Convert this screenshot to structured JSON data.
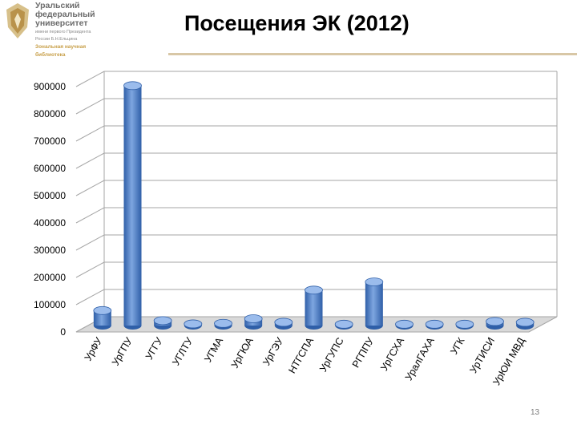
{
  "logo": {
    "name_lines": [
      "Уральский",
      "федеральный",
      "университет"
    ],
    "sub_lines": [
      "имени первого Президента",
      "России Б.Н.Ельцина"
    ],
    "lib_lines": [
      "Зональная научная",
      "библиотека"
    ]
  },
  "page": {
    "title": "Посещения ЭК (2012)",
    "number": "13"
  },
  "colors": {
    "bar_front": "#2f5fa8",
    "bar_light": "#7ea6e0",
    "bar_top": "#9bbcec",
    "grid": "#a6a6a6",
    "floor": "#d9d9d9",
    "title_rule": "#d8c7a6"
  },
  "chart_data": {
    "type": "bar",
    "title": "",
    "xlabel": "",
    "ylabel": "",
    "ylim": [
      0,
      900000
    ],
    "yticks": [
      "0",
      "100000",
      "200000",
      "300000",
      "400000",
      "500000",
      "600000",
      "700000",
      "800000",
      "900000"
    ],
    "grid": true,
    "style": "3d-cylinder",
    "categories": [
      "УрФУ",
      "УрГПУ",
      "УГГУ",
      "УГЛТУ",
      "УГМА",
      "УрГЮА",
      "УрГЭУ",
      "НТГСПА",
      "УрГУПС",
      "РГППУ",
      "УрГСХА",
      "УралГАХА",
      "УГК",
      "УрТИСИ",
      "УрЮИ МВД"
    ],
    "values": [
      55000,
      880000,
      18000,
      6000,
      8000,
      25000,
      12000,
      130000,
      5000,
      160000,
      5000,
      5000,
      5000,
      15000,
      12000
    ]
  }
}
